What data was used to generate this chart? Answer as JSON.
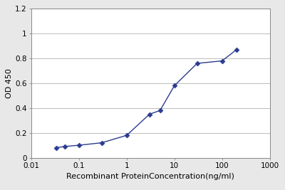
{
  "x_values": [
    0.033,
    0.05,
    0.1,
    0.3,
    1.0,
    3.0,
    5.0,
    10.0,
    30.0,
    100.0,
    200.0
  ],
  "y_values": [
    0.08,
    0.09,
    0.1,
    0.12,
    0.18,
    0.35,
    0.38,
    0.58,
    0.76,
    0.78,
    0.87
  ],
  "line_color": "#2B3B8F",
  "marker": "D",
  "marker_size": 3.5,
  "xlabel": "Recombinant ProteinConcentration(ng/ml)",
  "ylabel": "OD 450",
  "xlim": [
    0.01,
    1000
  ],
  "ylim": [
    0,
    1.2
  ],
  "yticks": [
    0,
    0.2,
    0.4,
    0.6,
    0.8,
    1,
    1.2
  ],
  "ytick_labels": [
    "0",
    "0.2",
    "0.4",
    "0.6",
    "0.8",
    "1",
    "1.2"
  ],
  "xtick_values": [
    0.01,
    0.1,
    1,
    10,
    100,
    1000
  ],
  "xtick_labels": [
    "0.01",
    "0.1",
    "1",
    "10",
    "100",
    "1000"
  ],
  "grid_color": "#bbbbbb",
  "background_color": "#ffffff",
  "fig_facecolor": "#e8e8e8",
  "label_fontsize": 8,
  "tick_fontsize": 7.5,
  "linewidth": 1.0
}
